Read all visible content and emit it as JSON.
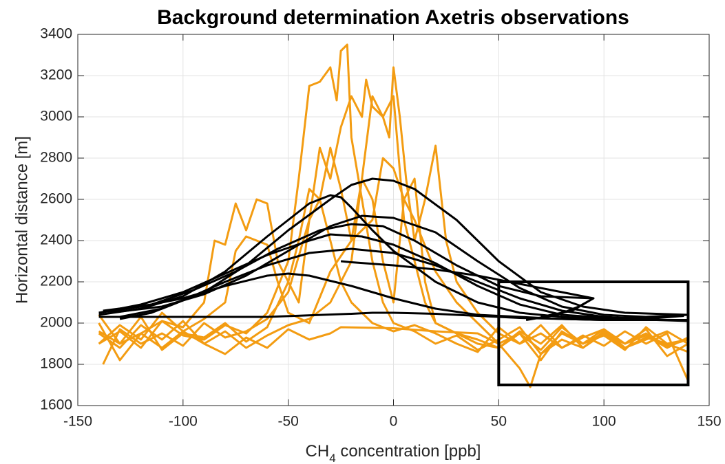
{
  "chart_data": {
    "type": "line",
    "title": "Background determination Axetris observations",
    "xlabel": [
      "CH",
      "4",
      " concentration [ppb]"
    ],
    "ylabel": "Horizontal distance [m]",
    "xlim": [
      -150,
      150
    ],
    "ylim": [
      1600,
      3400
    ],
    "xticks": [
      -150,
      -100,
      -50,
      0,
      50,
      100,
      150
    ],
    "yticks": [
      1600,
      1800,
      2000,
      2200,
      2400,
      2600,
      2800,
      3000,
      3200,
      3400
    ],
    "grid": true,
    "series": [
      {
        "color": "#f39c12",
        "x": [
          -140,
          -130,
          -120,
          -110,
          -100,
          -90,
          -80,
          -70,
          -60,
          -50,
          -45,
          -40,
          -35,
          -30,
          -27,
          -25,
          -22,
          -20,
          -15,
          -10,
          -5,
          0,
          10,
          20,
          30,
          40,
          50,
          60,
          70,
          80,
          90,
          100,
          110,
          120,
          130,
          140
        ],
        "values": [
          1900,
          1960,
          1880,
          2010,
          1940,
          1920,
          1990,
          1950,
          2050,
          2300,
          2700,
          3150,
          3170,
          3240,
          3080,
          3320,
          3350,
          2900,
          2600,
          2300,
          2100,
          2000,
          1960,
          1900,
          1940,
          1870,
          1920,
          1980,
          1850,
          1950,
          1900,
          1970,
          1880,
          1930,
          1900,
          1860
        ]
      },
      {
        "color": "#f39c12",
        "x": [
          -140,
          -130,
          -120,
          -110,
          -100,
          -90,
          -80,
          -70,
          -60,
          -50,
          -40,
          -30,
          -20,
          -15,
          -10,
          -5,
          -2,
          0,
          3,
          6,
          10,
          15,
          20,
          25,
          30,
          40,
          50,
          60,
          70,
          80,
          90,
          100,
          110,
          120,
          130,
          140
        ],
        "values": [
          1950,
          1880,
          1990,
          1920,
          2010,
          1900,
          1960,
          1880,
          1940,
          1990,
          2020,
          2100,
          2300,
          2700,
          3100,
          3000,
          2900,
          3240,
          3000,
          2700,
          2400,
          2600,
          2860,
          2400,
          2200,
          2050,
          1950,
          1900,
          1990,
          1880,
          1940,
          1890,
          1960,
          1900,
          1950,
          1720
        ]
      },
      {
        "color": "#f39c12",
        "x": [
          -138,
          -130,
          -120,
          -110,
          -100,
          -90,
          -80,
          -70,
          -60,
          -50,
          -40,
          -35,
          -30,
          -25,
          -20,
          -15,
          -13,
          -10,
          -5,
          0,
          5,
          10,
          15,
          20,
          30,
          40,
          50,
          60,
          70,
          80,
          90,
          100,
          110,
          120,
          130,
          140
        ],
        "values": [
          1800,
          1970,
          1900,
          1950,
          1890,
          2000,
          1930,
          1960,
          2020,
          2150,
          2500,
          2850,
          2700,
          2950,
          3100,
          3000,
          3180,
          3050,
          3000,
          3100,
          2500,
          2300,
          2100,
          2000,
          1950,
          1900,
          1880,
          1950,
          1820,
          1960,
          1900,
          1940,
          1870,
          1980,
          1900,
          1920
        ]
      },
      {
        "color": "#f39c12",
        "x": [
          -140,
          -130,
          -120,
          -110,
          -100,
          -90,
          -85,
          -80,
          -75,
          -70,
          -65,
          -60,
          -55,
          -50,
          -45,
          -40,
          -35,
          -30,
          -25,
          -20,
          -10,
          0,
          10,
          20,
          30,
          40,
          50,
          60,
          70,
          80,
          90,
          100,
          110,
          120,
          130,
          140
        ],
        "values": [
          2040,
          1900,
          1950,
          2010,
          1980,
          2100,
          2400,
          2380,
          2580,
          2450,
          2600,
          2580,
          2300,
          2200,
          2100,
          2500,
          2600,
          2400,
          2200,
          2100,
          2000,
          1960,
          1990,
          1950,
          1900,
          1860,
          1980,
          1900,
          1950,
          1880,
          1930,
          1970,
          1900,
          1940,
          1880,
          1930
        ]
      },
      {
        "color": "#f39c12",
        "x": [
          -140,
          -130,
          -120,
          -110,
          -100,
          -90,
          -80,
          -70,
          -60,
          -50,
          -45,
          -40,
          -35,
          -30,
          -25,
          -20,
          -15,
          -10,
          -5,
          0,
          5,
          10,
          15,
          20,
          30,
          40,
          50,
          60,
          70,
          80,
          90,
          100,
          110,
          120,
          130,
          140
        ],
        "values": [
          1960,
          1900,
          2030,
          1870,
          1950,
          1930,
          2000,
          1910,
          1980,
          2200,
          2400,
          2650,
          2600,
          2850,
          2650,
          2400,
          2700,
          2600,
          2300,
          2100,
          2600,
          2700,
          2200,
          2000,
          1950,
          1920,
          1880,
          1960,
          1900,
          1990,
          1880,
          1950,
          1900,
          1970,
          1840,
          1900
        ]
      },
      {
        "color": "#f39c12",
        "x": [
          -140,
          -130,
          -120,
          -110,
          -100,
          -90,
          -80,
          -70,
          -60,
          -50,
          -40,
          -30,
          -25,
          0,
          20,
          40,
          50,
          60,
          65,
          70,
          80,
          90,
          100,
          110,
          120,
          130,
          140
        ],
        "values": [
          2000,
          1820,
          1950,
          1880,
          1960,
          1900,
          1850,
          1930,
          1880,
          1970,
          1920,
          1950,
          1980,
          1975,
          1960,
          1950,
          1900,
          1780,
          1690,
          1850,
          1920,
          1880,
          1960,
          1900,
          1950,
          1890,
          1920
        ]
      },
      {
        "color": "#f39c12",
        "x": [
          -140,
          -130,
          -120,
          -110,
          -100,
          -90,
          -80,
          -75,
          -70,
          -60,
          -55,
          -50,
          -40,
          -30,
          -20,
          -10,
          -5,
          0,
          5,
          10,
          20,
          30,
          40,
          50,
          60,
          70,
          80,
          90,
          100,
          110,
          120,
          130,
          140
        ],
        "values": [
          1900,
          1990,
          1920,
          2050,
          1960,
          2020,
          2100,
          2350,
          2420,
          2380,
          2200,
          2050,
          2000,
          2250,
          2400,
          2500,
          2800,
          2750,
          2600,
          2500,
          2250,
          2100,
          2000,
          1900,
          1950,
          1870,
          1980,
          1900,
          1950,
          1880,
          1920,
          1960,
          1900
        ]
      },
      {
        "color": "#000000",
        "x": [
          -130,
          -110,
          -90,
          -70,
          -50,
          -30,
          -20,
          -10,
          0,
          10,
          30,
          50,
          70,
          90,
          110,
          140
        ],
        "values": [
          2030,
          2070,
          2150,
          2280,
          2450,
          2600,
          2670,
          2700,
          2690,
          2650,
          2500,
          2300,
          2150,
          2080,
          2050,
          2040
        ]
      },
      {
        "color": "#000000",
        "x": [
          -140,
          -120,
          -100,
          -80,
          -60,
          -40,
          -30,
          -25,
          -20,
          -10,
          0,
          20,
          40,
          60,
          80,
          100,
          140
        ],
        "values": [
          2040,
          2070,
          2130,
          2250,
          2420,
          2580,
          2620,
          2610,
          2560,
          2450,
          2350,
          2200,
          2100,
          2050,
          2030,
          2020,
          2040
        ]
      },
      {
        "color": "#000000",
        "x": [
          -135,
          -110,
          -90,
          -70,
          -50,
          -30,
          -15,
          0,
          20,
          40,
          60,
          80,
          100,
          120,
          138
        ],
        "values": [
          2050,
          2080,
          2140,
          2230,
          2350,
          2470,
          2520,
          2510,
          2440,
          2300,
          2170,
          2080,
          2040,
          2030,
          2035
        ]
      },
      {
        "color": "#000000",
        "x": [
          -138,
          -115,
          -95,
          -75,
          -55,
          -35,
          -20,
          -5,
          10,
          30,
          50,
          70,
          95,
          85,
          70
        ],
        "values": [
          2060,
          2090,
          2160,
          2250,
          2360,
          2450,
          2480,
          2470,
          2400,
          2280,
          2180,
          2130,
          2120,
          2060,
          2030
        ]
      },
      {
        "color": "#000000",
        "x": [
          -140,
          -120,
          -100,
          -80,
          -60,
          -40,
          -30,
          -15,
          0,
          20,
          40,
          60,
          80,
          110,
          140
        ],
        "values": [
          2050,
          2090,
          2150,
          2240,
          2330,
          2400,
          2430,
          2420,
          2380,
          2290,
          2180,
          2090,
          2040,
          2020,
          2010
        ]
      },
      {
        "color": "#000000",
        "x": [
          -130,
          -115,
          -100,
          -80,
          -60,
          -40,
          -20,
          0,
          20,
          40,
          60,
          80,
          100,
          120,
          138
        ],
        "values": [
          2020,
          2050,
          2110,
          2200,
          2280,
          2340,
          2360,
          2340,
          2280,
          2200,
          2120,
          2060,
          2030,
          2020,
          2035
        ]
      },
      {
        "color": "#000000",
        "x": [
          -140,
          -120,
          -100,
          -80,
          -60,
          -50,
          -40,
          -20,
          0,
          20,
          40,
          60,
          80,
          100,
          140
        ],
        "values": [
          2050,
          2080,
          2120,
          2180,
          2230,
          2240,
          2230,
          2180,
          2120,
          2070,
          2040,
          2030,
          2020,
          2015,
          2015
        ]
      },
      {
        "color": "#000000",
        "x": [
          -140,
          -100,
          -60,
          -20,
          -10,
          0,
          20,
          40,
          60,
          80,
          100,
          140
        ],
        "values": [
          2030,
          2030,
          2030,
          2045,
          2050,
          2050,
          2045,
          2035,
          2025,
          2020,
          2015,
          2015
        ]
      },
      {
        "color": "#000000",
        "x": [
          -25,
          -20,
          0,
          20,
          40,
          60,
          80,
          95,
          88,
          78,
          63
        ],
        "values": [
          2300,
          2295,
          2280,
          2260,
          2230,
          2190,
          2150,
          2120,
          2080,
          2040,
          2015
        ]
      }
    ],
    "annotation_box": {
      "x": [
        50,
        140
      ],
      "y": [
        1700,
        2200
      ]
    }
  }
}
